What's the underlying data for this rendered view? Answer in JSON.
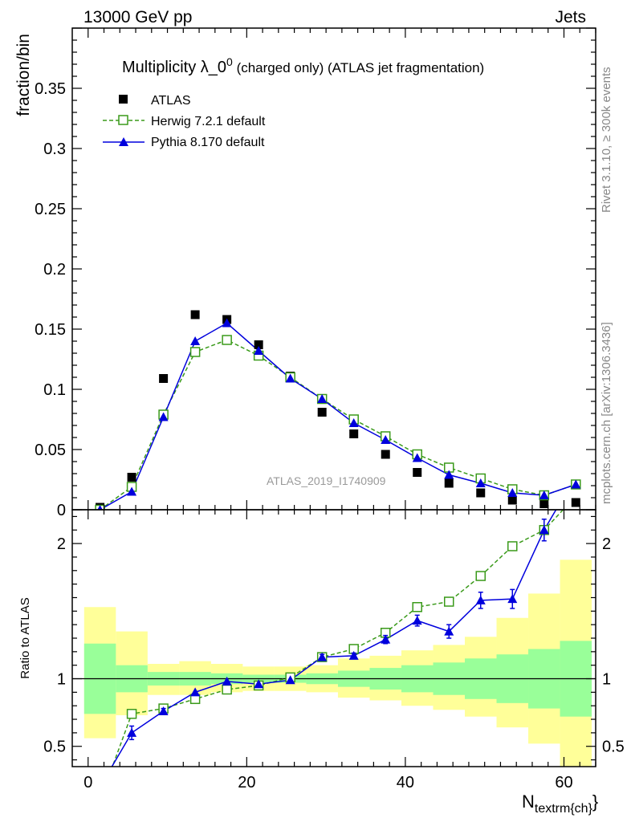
{
  "header": {
    "energy_label": "13000 GeV pp",
    "process_label": "Jets",
    "rivet_label": "Rivet 3.1.10, ≥ 300k events",
    "mcplots_label": "mcplots.cern.ch [arXiv:1306.3436]",
    "analysis_label": "ATLAS_2019_I1740909"
  },
  "colors": {
    "atlas": "#000000",
    "herwig": "#3a9a1a",
    "pythia": "#0000dd",
    "band_inner": "#99ff99",
    "band_outer": "#ffff99"
  },
  "chart_data": [
    {
      "type": "scatter",
      "panel": "main",
      "title": "Multiplicity λ_0⁰ (charged only) (ATLAS jet fragmentation)",
      "title_main": "Multiplicity λ_0",
      "title_sup": "0",
      "title_rest": " (charged only) (ATLAS jet fragmentation)",
      "ylabel": "fraction/bin",
      "xlabel_main": "N",
      "xlabel_sub": "textrm{ch}",
      "xlabel_close": "}",
      "xlim": [
        -2,
        64
      ],
      "ylim": [
        0,
        0.4
      ],
      "yticks": [
        0,
        0.05,
        0.1,
        0.15,
        0.2,
        0.25,
        0.3,
        0.35
      ],
      "ytick_labels": [
        "0",
        "0.05",
        "0.1",
        "0.15",
        "0.2",
        "0.25",
        "0.3",
        "0.35"
      ],
      "bin_edges": [
        -0.5,
        3.5,
        7.5,
        11.5,
        15.5,
        19.5,
        23.5,
        27.5,
        31.5,
        35.5,
        39.5,
        43.5,
        47.5,
        51.5,
        55.5,
        59.5,
        63.5
      ],
      "x": [
        1.5,
        5.5,
        9.5,
        13.5,
        17.5,
        21.5,
        25.5,
        29.5,
        33.5,
        37.5,
        41.5,
        45.5,
        49.5,
        53.5,
        57.5,
        61.5
      ],
      "series": [
        {
          "name": "ATLAS",
          "values": [
            0.002,
            0.027,
            0.109,
            0.162,
            0.158,
            0.137,
            0.111,
            0.081,
            0.063,
            0.046,
            0.031,
            0.022,
            0.014,
            0.008,
            0.005,
            0.006
          ]
        },
        {
          "name": "Herwig 7.2.1 default",
          "values": [
            0.0,
            0.019,
            0.079,
            0.131,
            0.141,
            0.128,
            0.11,
            0.092,
            0.075,
            0.061,
            0.046,
            0.035,
            0.026,
            0.017,
            0.012,
            0.021
          ]
        },
        {
          "name": "Pythia 8.170 default",
          "values": [
            0.0,
            0.015,
            0.077,
            0.14,
            0.155,
            0.132,
            0.109,
            0.092,
            0.072,
            0.058,
            0.043,
            0.029,
            0.022,
            0.014,
            0.012,
            0.021
          ]
        }
      ]
    },
    {
      "type": "scatter",
      "panel": "ratio",
      "ylabel": "Ratio to ATLAS",
      "xlim": [
        -2,
        64
      ],
      "ylim": [
        0.35,
        2.25
      ],
      "yticks": [
        0.5,
        1,
        2
      ],
      "ytick_labels": [
        "0.5",
        "1",
        "2"
      ],
      "xticks": [
        0,
        20,
        40,
        60
      ],
      "xtick_labels": [
        "0",
        "20",
        "40",
        "60"
      ],
      "x": [
        1.5,
        5.5,
        9.5,
        13.5,
        17.5,
        21.5,
        25.5,
        29.5,
        33.5,
        37.5,
        41.5,
        45.5,
        49.5,
        53.5,
        57.5,
        61.5
      ],
      "band_inner": [
        [
          0.74,
          1.26
        ],
        [
          0.9,
          1.1
        ],
        [
          0.95,
          1.05
        ],
        [
          0.95,
          1.05
        ],
        [
          0.96,
          1.04
        ],
        [
          0.97,
          1.03
        ],
        [
          0.97,
          1.03
        ],
        [
          0.96,
          1.04
        ],
        [
          0.94,
          1.06
        ],
        [
          0.92,
          1.08
        ],
        [
          0.9,
          1.1
        ],
        [
          0.88,
          1.12
        ],
        [
          0.85,
          1.15
        ],
        [
          0.82,
          1.18
        ],
        [
          0.78,
          1.22
        ],
        [
          0.72,
          1.28
        ]
      ],
      "band_outer": [
        [
          0.56,
          1.53
        ],
        [
          0.73,
          1.35
        ],
        [
          0.88,
          1.11
        ],
        [
          0.88,
          1.13
        ],
        [
          0.9,
          1.11
        ],
        [
          0.91,
          1.09
        ],
        [
          0.91,
          1.09
        ],
        [
          0.9,
          1.1
        ],
        [
          0.86,
          1.15
        ],
        [
          0.84,
          1.17
        ],
        [
          0.8,
          1.21
        ],
        [
          0.77,
          1.25
        ],
        [
          0.72,
          1.31
        ],
        [
          0.64,
          1.45
        ],
        [
          0.52,
          1.63
        ],
        [
          0.35,
          1.88
        ]
      ],
      "herwig": [
        0.1,
        0.74,
        0.78,
        0.85,
        0.92,
        0.95,
        1.01,
        1.16,
        1.22,
        1.34,
        1.53,
        1.57,
        1.76,
        1.98,
        2.1,
        2.35
      ],
      "pythia": [
        0.2,
        0.6,
        0.76,
        0.9,
        0.98,
        0.96,
        0.99,
        1.16,
        1.17,
        1.29,
        1.43,
        1.35,
        1.58,
        1.59,
        2.1,
        2.5
      ],
      "pythia_err": [
        0.0,
        0.05,
        0.02,
        0.01,
        0.01,
        0.01,
        0.01,
        0.02,
        0.02,
        0.03,
        0.04,
        0.05,
        0.06,
        0.07,
        0.08,
        0.1
      ]
    }
  ]
}
